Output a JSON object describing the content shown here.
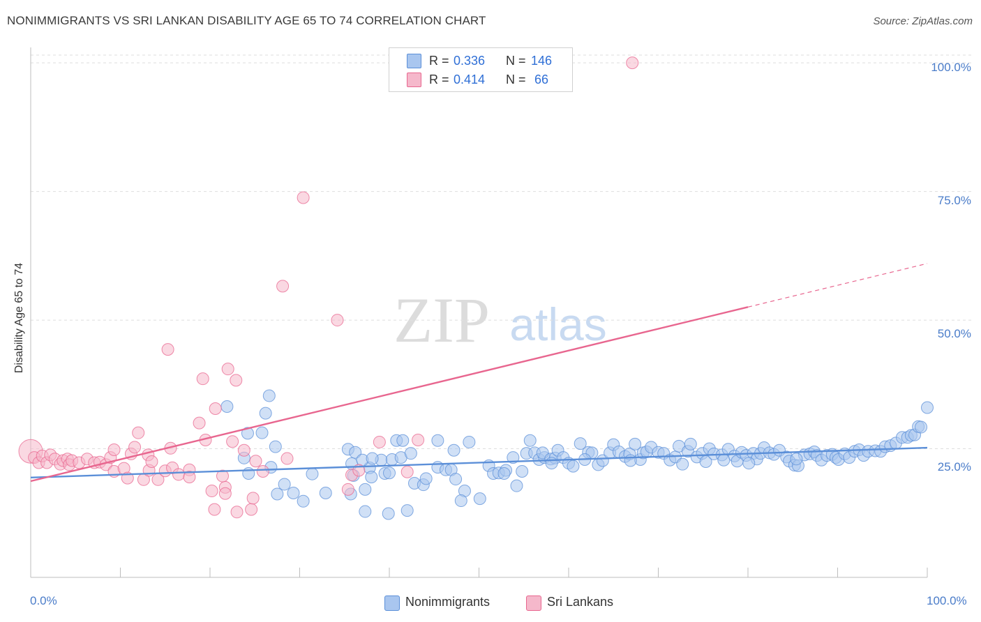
{
  "header": {
    "title": "NONIMMIGRANTS VS SRI LANKAN DISABILITY AGE 65 TO 74 CORRELATION CHART",
    "source": "Source: ZipAtlas.com"
  },
  "watermark": {
    "zip": "ZIP",
    "atlas": "atlas"
  },
  "stats_box": {
    "rows": [
      {
        "r_label": "R = ",
        "r_value": "0.336",
        "n_label": "N = ",
        "n_value": "146",
        "color": "#a9c6ef"
      },
      {
        "r_label": "R = ",
        "r_value": "0.414",
        "n_label": "N = ",
        "n_value": " 66",
        "color": "#f5b8cb"
      }
    ]
  },
  "legend": {
    "items": [
      {
        "label": "Nonimmigrants",
        "color": "#a9c6ef"
      },
      {
        "label": "Sri Lankans",
        "color": "#f5b8cb"
      }
    ]
  },
  "axes": {
    "ylabel": "Disability Age 65 to 74",
    "y_ticks": [
      "100.0%",
      "75.0%",
      "50.0%",
      "25.0%"
    ],
    "x_ticks": [
      "0.0%",
      "100.0%"
    ]
  },
  "chart_data": {
    "type": "scatter",
    "title": "NONIMMIGRANTS VS SRI LANKAN DISABILITY AGE 65 TO 74 CORRELATION CHART",
    "xlabel": "",
    "ylabel": "Disability Age 65 to 74",
    "xlim": [
      0,
      100
    ],
    "ylim": [
      0,
      103
    ],
    "grid": true,
    "legend_position": "bottom-center",
    "series": [
      {
        "name": "Nonimmigrants",
        "color": "#5b8fd8",
        "fill": "#a9c6ef",
        "r": 0.336,
        "n": 146,
        "trend": {
          "x0": 0,
          "y0": 19.4,
          "x1": 100,
          "y1": 25.2,
          "dash_from": null
        },
        "points": [
          [
            21.9,
            33.2
          ],
          [
            26.6,
            35.3
          ],
          [
            26.2,
            31.9
          ],
          [
            24.2,
            28.0
          ],
          [
            25.8,
            28.1
          ],
          [
            27.3,
            25.4
          ],
          [
            23.8,
            23.2
          ],
          [
            24.3,
            20.2
          ],
          [
            26.8,
            21.4
          ],
          [
            27.5,
            16.2
          ],
          [
            28.3,
            18.1
          ],
          [
            29.3,
            16.4
          ],
          [
            30.4,
            14.8
          ],
          [
            31.4,
            20.1
          ],
          [
            32.9,
            16.4
          ],
          [
            35.7,
            16.2
          ],
          [
            36.0,
            19.8
          ],
          [
            35.4,
            24.9
          ],
          [
            36.2,
            24.3
          ],
          [
            35.8,
            22.1
          ],
          [
            37.8,
            21.3
          ],
          [
            37.0,
            22.8
          ],
          [
            39.1,
            22.8
          ],
          [
            38.0,
            19.5
          ],
          [
            37.3,
            17.1
          ],
          [
            38.1,
            23.1
          ],
          [
            39.5,
            20.2
          ],
          [
            40.3,
            22.9
          ],
          [
            40.0,
            20.3
          ],
          [
            37.3,
            12.8
          ],
          [
            39.9,
            12.4
          ],
          [
            42.0,
            13.0
          ],
          [
            40.8,
            26.6
          ],
          [
            41.5,
            26.6
          ],
          [
            41.3,
            23.3
          ],
          [
            42.4,
            24.1
          ],
          [
            42.8,
            18.3
          ],
          [
            43.8,
            18.0
          ],
          [
            44.1,
            19.2
          ],
          [
            45.4,
            26.6
          ],
          [
            45.4,
            21.4
          ],
          [
            46.3,
            20.9
          ],
          [
            46.9,
            20.9
          ],
          [
            47.2,
            24.7
          ],
          [
            47.4,
            19.1
          ],
          [
            48.9,
            26.3
          ],
          [
            48.4,
            16.8
          ],
          [
            48.0,
            14.9
          ],
          [
            50.1,
            15.3
          ],
          [
            51.1,
            21.7
          ],
          [
            51.6,
            20.2
          ],
          [
            52.2,
            20.3
          ],
          [
            53.0,
            20.8
          ],
          [
            52.8,
            20.2
          ],
          [
            53.8,
            23.3
          ],
          [
            54.2,
            17.8
          ],
          [
            54.8,
            20.6
          ],
          [
            55.3,
            24.1
          ],
          [
            55.7,
            26.6
          ],
          [
            56.2,
            24.2
          ],
          [
            56.7,
            22.9
          ],
          [
            57.3,
            23.3
          ],
          [
            57.1,
            24.2
          ],
          [
            58.0,
            23.0
          ],
          [
            58.5,
            23.2
          ],
          [
            58.8,
            24.7
          ],
          [
            59.4,
            23.3
          ],
          [
            60.0,
            22.2
          ],
          [
            60.5,
            21.6
          ],
          [
            61.3,
            26.0
          ],
          [
            62.2,
            24.3
          ],
          [
            62.6,
            24.2
          ],
          [
            63.3,
            21.9
          ],
          [
            63.8,
            22.7
          ],
          [
            64.6,
            24.2
          ],
          [
            65.0,
            25.8
          ],
          [
            65.6,
            24.4
          ],
          [
            66.3,
            23.5
          ],
          [
            66.8,
            24.0
          ],
          [
            67.4,
            25.9
          ],
          [
            68.0,
            22.9
          ],
          [
            68.3,
            24.2
          ],
          [
            68.7,
            24.4
          ],
          [
            69.2,
            25.3
          ],
          [
            70.0,
            24.3
          ],
          [
            70.6,
            24.1
          ],
          [
            71.3,
            22.8
          ],
          [
            71.9,
            23.4
          ],
          [
            72.3,
            25.5
          ],
          [
            73.3,
            24.5
          ],
          [
            73.6,
            25.9
          ],
          [
            74.3,
            23.4
          ],
          [
            74.9,
            24.1
          ],
          [
            75.3,
            22.5
          ],
          [
            75.7,
            25.0
          ],
          [
            76.2,
            24.0
          ],
          [
            77.1,
            23.8
          ],
          [
            77.3,
            22.8
          ],
          [
            77.8,
            24.9
          ],
          [
            78.5,
            23.6
          ],
          [
            78.8,
            22.6
          ],
          [
            79.3,
            24.3
          ],
          [
            79.8,
            23.7
          ],
          [
            80.6,
            24.1
          ],
          [
            81.0,
            23.0
          ],
          [
            81.4,
            24.1
          ],
          [
            81.8,
            25.2
          ],
          [
            82.4,
            24.2
          ],
          [
            82.9,
            23.9
          ],
          [
            83.5,
            24.7
          ],
          [
            84.3,
            23.4
          ],
          [
            84.6,
            22.6
          ],
          [
            85.2,
            21.8
          ],
          [
            85.6,
            21.7
          ],
          [
            86.3,
            23.8
          ],
          [
            86.9,
            24.0
          ],
          [
            87.4,
            24.4
          ],
          [
            87.7,
            23.7
          ],
          [
            88.2,
            22.8
          ],
          [
            88.8,
            23.7
          ],
          [
            89.4,
            23.9
          ],
          [
            89.8,
            23.3
          ],
          [
            90.1,
            22.9
          ],
          [
            90.8,
            24.0
          ],
          [
            91.3,
            23.3
          ],
          [
            91.9,
            24.5
          ],
          [
            92.4,
            24.8
          ],
          [
            92.9,
            23.7
          ],
          [
            93.4,
            24.5
          ],
          [
            94.2,
            24.6
          ],
          [
            94.8,
            24.5
          ],
          [
            95.3,
            25.4
          ],
          [
            95.9,
            25.6
          ],
          [
            96.5,
            26.1
          ],
          [
            97.2,
            27.2
          ],
          [
            97.8,
            27.2
          ],
          [
            98.2,
            27.6
          ],
          [
            98.6,
            27.7
          ],
          [
            99.0,
            29.3
          ],
          [
            99.3,
            29.2
          ],
          [
            100.0,
            33.0
          ],
          [
            58.1,
            22.2
          ],
          [
            61.8,
            22.9
          ],
          [
            66.9,
            22.7
          ],
          [
            72.7,
            22.0
          ],
          [
            80.1,
            22.2
          ],
          [
            85.4,
            23.0
          ]
        ]
      },
      {
        "name": "Sri Lankans",
        "color": "#e8668f",
        "fill": "#f5b8cb",
        "r": 0.414,
        "n": 66,
        "trend": {
          "x0": 0,
          "y0": 18.7,
          "x1": 100,
          "y1": 61.0,
          "dash_from": 80
        },
        "points": [
          [
            0.0,
            24.5
          ],
          [
            0.4,
            23.3
          ],
          [
            0.9,
            22.3
          ],
          [
            1.3,
            23.6
          ],
          [
            1.8,
            22.3
          ],
          [
            2.2,
            23.8
          ],
          [
            2.7,
            23.0
          ],
          [
            3.3,
            22.0
          ],
          [
            3.6,
            22.7
          ],
          [
            4.1,
            23.0
          ],
          [
            4.3,
            21.9
          ],
          [
            4.6,
            22.7
          ],
          [
            5.4,
            22.3
          ],
          [
            6.3,
            23.0
          ],
          [
            7.1,
            22.3
          ],
          [
            7.7,
            22.4
          ],
          [
            8.4,
            21.9
          ],
          [
            8.9,
            23.3
          ],
          [
            9.3,
            20.6
          ],
          [
            9.3,
            24.8
          ],
          [
            10.4,
            21.2
          ],
          [
            10.8,
            19.3
          ],
          [
            11.2,
            24.0
          ],
          [
            11.6,
            25.3
          ],
          [
            12.0,
            28.1
          ],
          [
            12.6,
            19.0
          ],
          [
            13.1,
            23.8
          ],
          [
            13.2,
            20.8
          ],
          [
            13.5,
            22.5
          ],
          [
            14.2,
            19.0
          ],
          [
            15.0,
            20.7
          ],
          [
            15.8,
            21.3
          ],
          [
            16.5,
            20.0
          ],
          [
            17.7,
            20.9
          ],
          [
            17.7,
            19.5
          ],
          [
            15.3,
            44.3
          ],
          [
            15.6,
            25.1
          ],
          [
            18.8,
            30.0
          ],
          [
            19.2,
            38.6
          ],
          [
            19.5,
            26.7
          ],
          [
            20.2,
            16.8
          ],
          [
            20.5,
            13.2
          ],
          [
            20.6,
            32.8
          ],
          [
            21.7,
            17.5
          ],
          [
            21.7,
            16.3
          ],
          [
            21.4,
            19.7
          ],
          [
            23.0,
            12.7
          ],
          [
            23.8,
            24.7
          ],
          [
            24.6,
            13.2
          ],
          [
            24.8,
            15.4
          ],
          [
            25.1,
            22.6
          ],
          [
            25.9,
            20.6
          ],
          [
            22.0,
            40.5
          ],
          [
            22.5,
            26.4
          ],
          [
            22.9,
            38.3
          ],
          [
            28.1,
            56.6
          ],
          [
            28.6,
            23.1
          ],
          [
            30.4,
            73.8
          ],
          [
            34.2,
            50.0
          ],
          [
            35.4,
            17.1
          ],
          [
            35.8,
            19.9
          ],
          [
            36.6,
            20.8
          ],
          [
            38.9,
            26.3
          ],
          [
            42.0,
            20.5
          ],
          [
            43.2,
            26.7
          ],
          [
            67.1,
            100.0
          ]
        ]
      }
    ]
  }
}
